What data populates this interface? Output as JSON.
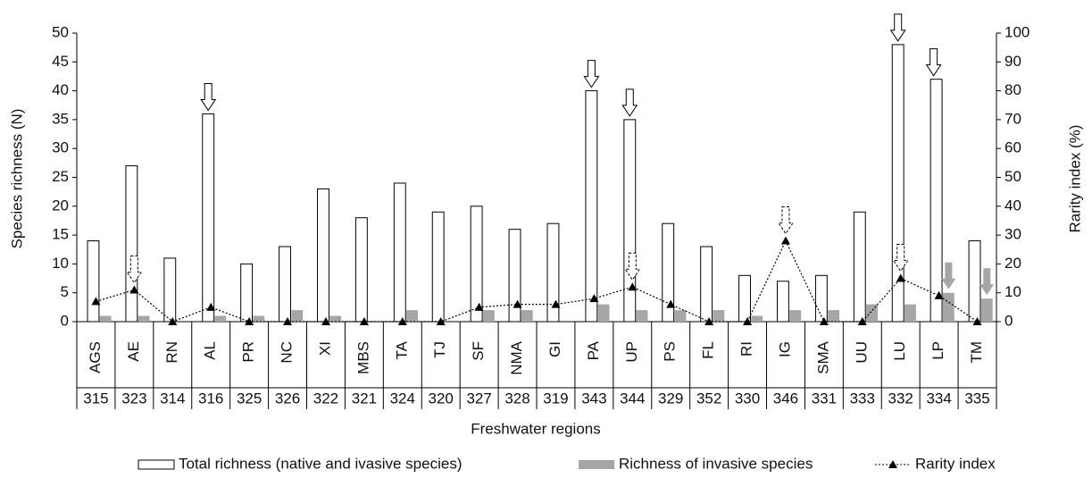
{
  "chart_data": {
    "type": "bar",
    "y_label": "Species richness (N)",
    "y2_label": "Rarity index (%)",
    "x_label": "Freshwater regions",
    "categories": [
      "AGS",
      "AE",
      "RN",
      "AL",
      "PR",
      "NC",
      "XI",
      "MBS",
      "TA",
      "TJ",
      "SF",
      "NMA",
      "GI",
      "PA",
      "UP",
      "PS",
      "FL",
      "RI",
      "IG",
      "SMA",
      "UU",
      "LU",
      "LP",
      "TM"
    ],
    "codes": [
      "315",
      "323",
      "314",
      "316",
      "325",
      "326",
      "322",
      "321",
      "324",
      "320",
      "327",
      "328",
      "319",
      "343",
      "344",
      "329",
      "352",
      "330",
      "346",
      "331",
      "333",
      "332",
      "334",
      "335"
    ],
    "series": [
      {
        "name": "Total richness (native and ivasive species)",
        "type": "bar",
        "color": "#ffffff",
        "values": [
          14,
          27,
          11,
          36,
          10,
          13,
          23,
          18,
          24,
          19,
          20,
          16,
          17,
          40,
          35,
          17,
          13,
          8,
          7,
          8,
          19,
          48,
          42,
          14
        ]
      },
      {
        "name": "Richness of invasive species",
        "type": "bar",
        "color": "#a6a6a6",
        "values": [
          1,
          1,
          0,
          1,
          1,
          2,
          1,
          0,
          2,
          0,
          2,
          2,
          0,
          3,
          2,
          2,
          2,
          1,
          2,
          2,
          3,
          3,
          5,
          4
        ]
      },
      {
        "name": "Rarity index",
        "type": "line",
        "axis": "y2",
        "color": "#000000",
        "values": [
          7,
          11,
          0,
          5,
          0,
          0,
          0,
          0,
          0,
          0,
          5,
          6,
          6,
          8,
          12,
          6,
          0,
          0,
          28,
          0,
          0,
          15,
          9,
          0
        ]
      }
    ],
    "ylim": [
      0,
      50
    ],
    "yticks": [
      0,
      5,
      10,
      15,
      20,
      25,
      30,
      35,
      40,
      45,
      50
    ],
    "y2lim": [
      0,
      100
    ],
    "y2ticks": [
      0,
      10,
      20,
      30,
      40,
      50,
      60,
      70,
      80,
      90,
      100
    ]
  }
}
